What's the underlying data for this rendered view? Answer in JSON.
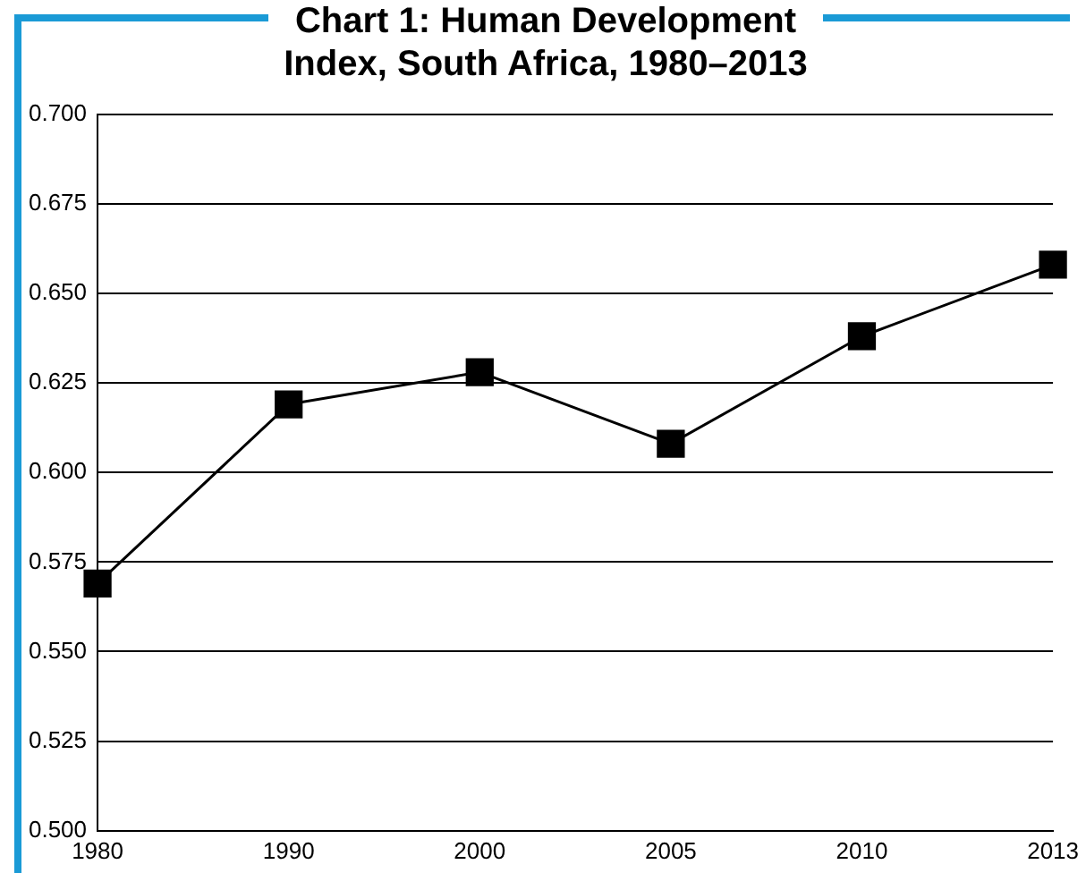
{
  "chart_data": {
    "type": "line",
    "title": "Chart 1: Human Development Index, South Africa, 1980–2013",
    "categories": [
      "1980",
      "1990",
      "2000",
      "2005",
      "2010",
      "2013"
    ],
    "values": [
      0.569,
      0.619,
      0.628,
      0.608,
      0.638,
      0.658
    ],
    "color": "#000000",
    "marker": "square",
    "line_style": "solid",
    "ylim": [
      0.5,
      0.7
    ],
    "yticks": [
      {
        "value": 0.5,
        "label": "0.500"
      },
      0.525,
      {
        "value": 0.55,
        "label": "0.550"
      },
      0.575,
      {
        "value": 0.6,
        "label": "0.600"
      },
      0.625,
      {
        "value": 0.65,
        "label": "0.650"
      },
      0.675,
      {
        "value": 0.7,
        "label": "0.700"
      }
    ],
    "grid": "y",
    "legend": false
  }
}
